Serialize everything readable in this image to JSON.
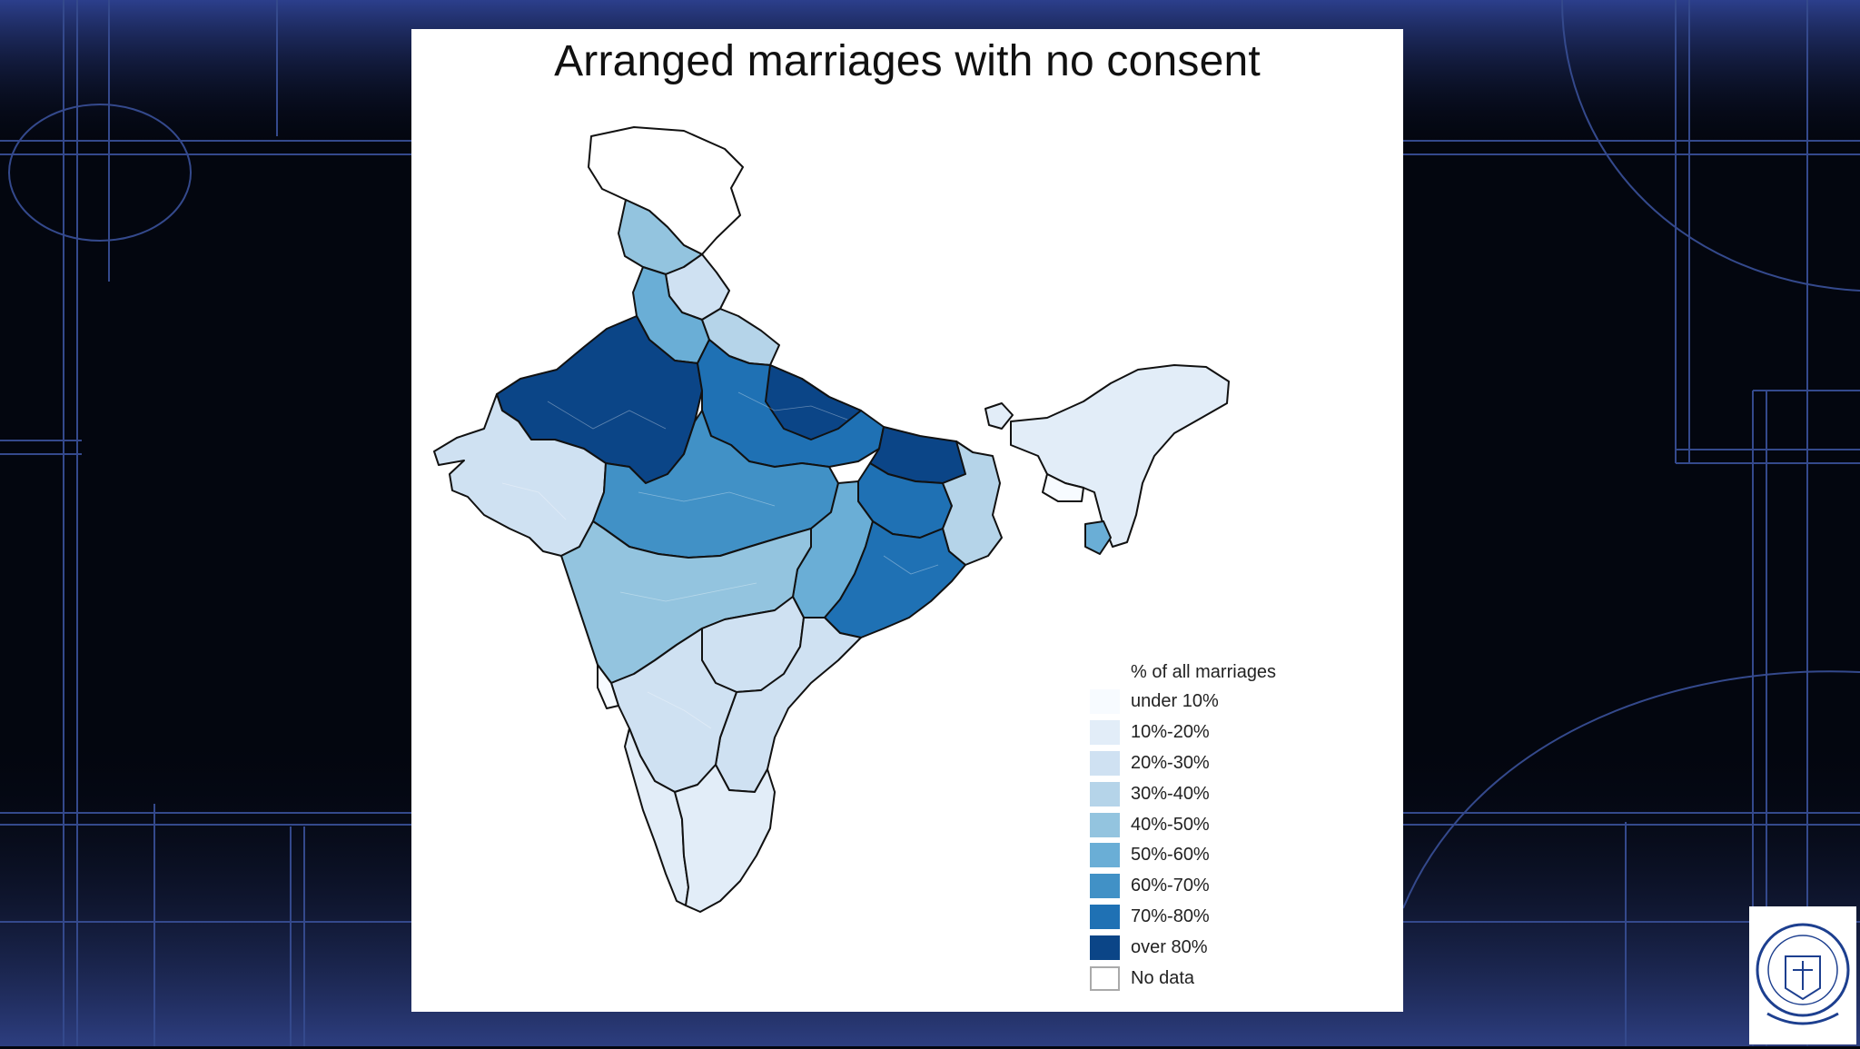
{
  "title": "Arranged marriages with no consent",
  "legend": {
    "title": "% of all marriages",
    "items": [
      {
        "label": "under 10%",
        "color": "#f7fbff"
      },
      {
        "label": "10%-20%",
        "color": "#e2edf8"
      },
      {
        "label": "20%-30%",
        "color": "#cfe1f2"
      },
      {
        "label": "30%-40%",
        "color": "#b5d4e9"
      },
      {
        "label": "40%-50%",
        "color": "#93c4df"
      },
      {
        "label": "50%-60%",
        "color": "#6aaed6"
      },
      {
        "label": "60%-70%",
        "color": "#4191c6"
      },
      {
        "label": "70%-80%",
        "color": "#1f71b4"
      },
      {
        "label": "over 80%",
        "color": "#0b4587"
      },
      {
        "label": "No data",
        "color": "#ffffff"
      }
    ]
  },
  "map_regions": [
    {
      "name": "jammu-kashmir-region",
      "class": "No data"
    },
    {
      "name": "kashmir-valley-region",
      "class": "40%-50%"
    },
    {
      "name": "himachal-region",
      "class": "20%-30%"
    },
    {
      "name": "punjab-region",
      "class": "50%-60%"
    },
    {
      "name": "uttarakhand-region",
      "class": "30%-40%"
    },
    {
      "name": "rajasthan-region",
      "class": "over 80%"
    },
    {
      "name": "uttar-pradesh-region",
      "class": "over 80%"
    },
    {
      "name": "bihar-region",
      "class": "over 80%"
    },
    {
      "name": "gujarat-region",
      "class": "20%-30%"
    },
    {
      "name": "madhya-pradesh-region",
      "class": "60%-70%"
    },
    {
      "name": "jharkhand-region",
      "class": "70%-80%"
    },
    {
      "name": "west-bengal-region",
      "class": "30%-40%"
    },
    {
      "name": "chhattisgarh-region",
      "class": "50%-60%"
    },
    {
      "name": "odisha-region",
      "class": "70%-80%"
    },
    {
      "name": "maharashtra-region",
      "class": "40%-50%"
    },
    {
      "name": "telangana-region",
      "class": "20%-30%"
    },
    {
      "name": "andhra-pradesh-region",
      "class": "20%-30%"
    },
    {
      "name": "karnataka-region",
      "class": "20%-30%"
    },
    {
      "name": "goa-region",
      "class": "under 10%"
    },
    {
      "name": "kerala-region",
      "class": "10%-20%"
    },
    {
      "name": "tamil-nadu-region",
      "class": "10%-20%"
    },
    {
      "name": "northeast-region",
      "class": "10%-20%"
    },
    {
      "name": "meghalaya-region",
      "class": "under 10%"
    },
    {
      "name": "tripura-region",
      "class": "50%-60%"
    }
  ],
  "colors": {
    "background": "#03060f",
    "grid_line": "#3a4f96",
    "border": "#000000"
  }
}
